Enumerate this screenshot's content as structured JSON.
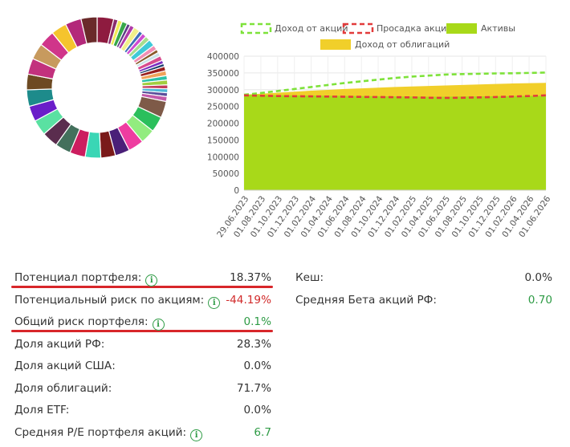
{
  "donut": {
    "segments": [
      {
        "color": "#8e1b3f",
        "value": 3.4
      },
      {
        "color": "#8a2c6e",
        "value": 0.9
      },
      {
        "color": "#f0ea57",
        "value": 0.9
      },
      {
        "color": "#37a84a",
        "value": 1.1
      },
      {
        "color": "#5e3d86",
        "value": 0.7
      },
      {
        "color": "#b03aa8",
        "value": 0.9
      },
      {
        "color": "#f1f08a",
        "value": 1.3
      },
      {
        "color": "#3f6fb7",
        "value": 0.8
      },
      {
        "color": "#cf4bd1",
        "value": 0.9
      },
      {
        "color": "#a6dd8e",
        "value": 1.0
      },
      {
        "color": "#3fcad8",
        "value": 1.4
      },
      {
        "color": "#f08fb4",
        "value": 1.0
      },
      {
        "color": "#8b5a2b",
        "value": 0.7
      },
      {
        "color": "#c9e3e8",
        "value": 0.8
      },
      {
        "color": "#d84b8e",
        "value": 1.0
      },
      {
        "color": "#7b2ec0",
        "value": 0.7
      },
      {
        "color": "#1c3f6e",
        "value": 0.6
      },
      {
        "color": "#9a1f1f",
        "value": 0.9
      },
      {
        "color": "#f0a25a",
        "value": 1.0
      },
      {
        "color": "#2ec2a6",
        "value": 0.9
      },
      {
        "color": "#a2cd3f",
        "value": 1.0
      },
      {
        "color": "#c43b5a",
        "value": 0.8
      },
      {
        "color": "#4fb8d8",
        "value": 0.8
      },
      {
        "color": "#5b4f9c",
        "value": 0.8
      },
      {
        "color": "#c25aaa",
        "value": 1.0
      },
      {
        "color": "#7e5a48",
        "value": 3.4
      },
      {
        "color": "#2bbf5c",
        "value": 3.2
      },
      {
        "color": "#92ec7f",
        "value": 3.0
      },
      {
        "color": "#ee3da0",
        "value": 3.2
      },
      {
        "color": "#4a1f78",
        "value": 3.0
      },
      {
        "color": "#7a1a1a",
        "value": 3.0
      },
      {
        "color": "#3ad6b5",
        "value": 3.2
      },
      {
        "color": "#cc1d5f",
        "value": 3.2
      },
      {
        "color": "#43705c",
        "value": 3.2
      },
      {
        "color": "#5a2d4e",
        "value": 3.3
      },
      {
        "color": "#5ae1a2",
        "value": 3.2
      },
      {
        "color": "#6a1ec9",
        "value": 3.2
      },
      {
        "color": "#1d8b8b",
        "value": 3.4
      },
      {
        "color": "#6d4a22",
        "value": 3.2
      },
      {
        "color": "#c2317d",
        "value": 3.3
      },
      {
        "color": "#c79a5e",
        "value": 3.3
      },
      {
        "color": "#d0358a",
        "value": 3.3
      },
      {
        "color": "#f5c42d",
        "value": 3.2
      },
      {
        "color": "#b3287a",
        "value": 3.3
      },
      {
        "color": "#6a2a2a",
        "value": 3.3
      }
    ]
  },
  "legend": {
    "stock_income": "Доход от акций",
    "stock_drawdown": "Просадка акций",
    "assets": "Активы",
    "bond_income": "Доход от облигаций"
  },
  "chart_data": {
    "type": "area",
    "x": [
      "29.06.2023",
      "01.08.2023",
      "01.10.2023",
      "01.12.2023",
      "01.02.2024",
      "01.04.2024",
      "01.06.2024",
      "01.08.2024",
      "01.10.2024",
      "01.12.2024",
      "01.02.2025",
      "01.04.2025",
      "01.06.2025",
      "01.08.2025",
      "01.10.2025",
      "01.12.2025",
      "01.02.2026",
      "01.04.2026",
      "01.06.2026"
    ],
    "ylim": [
      0,
      400000
    ],
    "yticks": [
      0,
      50000,
      100000,
      150000,
      200000,
      250000,
      300000,
      350000,
      400000
    ],
    "series": [
      {
        "name": "Активы",
        "kind": "area",
        "color": "#a8d919",
        "values": [
          285000,
          284000,
          283500,
          283000,
          282500,
          282000,
          281500,
          281000,
          280500,
          280000,
          279500,
          279000,
          279000,
          279500,
          280000,
          280500,
          281000,
          281500,
          282000
        ]
      },
      {
        "name": "Доход от облигаций",
        "kind": "area",
        "color": "#f1cf2a",
        "values": [
          285000,
          288000,
          291000,
          294000,
          297000,
          299500,
          302000,
          304000,
          306000,
          308000,
          309500,
          311000,
          312500,
          314000,
          315500,
          317000,
          318500,
          319500,
          320500
        ]
      },
      {
        "name": "Доход от акций",
        "kind": "dashed-line",
        "color": "#7ee23a",
        "values": [
          285000,
          290000,
          296000,
          302000,
          308000,
          314000,
          320000,
          325000,
          330000,
          335000,
          339000,
          342000,
          345000,
          346500,
          347500,
          348500,
          349000,
          350000,
          351000
        ]
      },
      {
        "name": "Просадка акций",
        "kind": "dashed-line",
        "color": "#e23b3b",
        "values": [
          283000,
          282000,
          281000,
          280500,
          280000,
          279500,
          279000,
          278500,
          278000,
          277500,
          277000,
          276000,
          275500,
          276000,
          277000,
          278000,
          279500,
          281000,
          283000
        ]
      }
    ]
  },
  "stats_left": [
    {
      "label": "Потенциал портфеля:",
      "value": "18.37%",
      "info": true,
      "tone": "neutral"
    },
    {
      "label": "Потенциальный риск по акциям:",
      "value": "-44.19%",
      "info": true,
      "tone": "neg"
    },
    {
      "label": "Общий риск портфеля:",
      "value": "0.1%",
      "info": true,
      "tone": "pos"
    },
    {
      "label": "Доля акций РФ:",
      "value": "28.3%",
      "info": false,
      "tone": "neutral"
    },
    {
      "label": "Доля акций США:",
      "value": "0.0%",
      "info": false,
      "tone": "neutral"
    },
    {
      "label": "Доля облигаций:",
      "value": "71.7%",
      "info": false,
      "tone": "neutral"
    },
    {
      "label": "Доля ETF:",
      "value": "0.0%",
      "info": false,
      "tone": "neutral"
    },
    {
      "label": "Средняя P/E портфеля акций:",
      "value": "6.7",
      "info": true,
      "tone": "pos"
    }
  ],
  "stats_right": [
    {
      "label": "Кеш:",
      "value": "0.0%",
      "tone": "neutral"
    },
    {
      "label": "Средняя Бета акций РФ:",
      "value": "0.70",
      "tone": "pos"
    }
  ],
  "info_glyph": "i"
}
